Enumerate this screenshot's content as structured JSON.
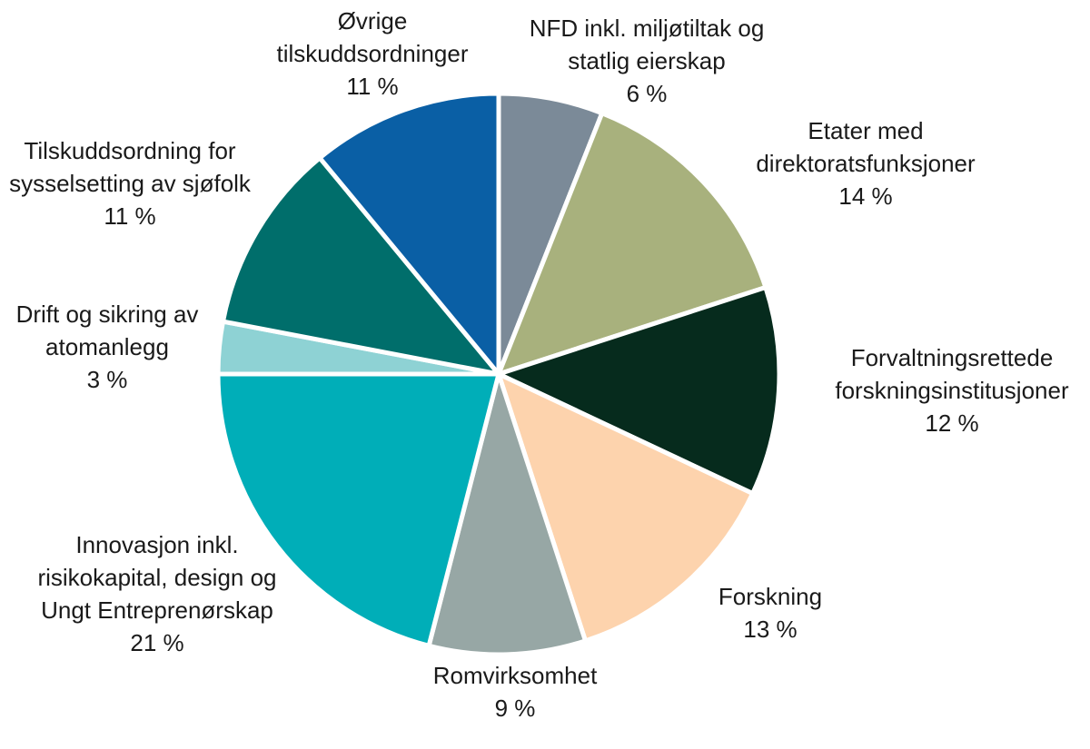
{
  "chart_data": {
    "type": "pie",
    "title": "",
    "start_angle_deg": 0,
    "direction": "clockwise",
    "value_unit": "%",
    "slices": [
      {
        "key": "nfd",
        "label_lines": [
          "NFD inkl. miljøtiltak og",
          "statlig eierskap"
        ],
        "value": 6,
        "value_label": "6 %",
        "color": "#7b8a98"
      },
      {
        "key": "etater",
        "label_lines": [
          "Etater med",
          "direktoratsfunksjoner"
        ],
        "value": 14,
        "value_label": "14 %",
        "color": "#a8b17d"
      },
      {
        "key": "forvaltning",
        "label_lines": [
          "Forvaltningsrettede",
          "forskningsinstitusjoner"
        ],
        "value": 12,
        "value_label": "12 %",
        "color": "#062b1d"
      },
      {
        "key": "forskning",
        "label_lines": [
          "Forskning"
        ],
        "value": 13,
        "value_label": "13 %",
        "color": "#fdd3ad"
      },
      {
        "key": "rom",
        "label_lines": [
          "Romvirksomhet"
        ],
        "value": 9,
        "value_label": "9 %",
        "color": "#97a7a5"
      },
      {
        "key": "innovasjon",
        "label_lines": [
          "Innovasjon inkl.",
          "risikokapital, design og",
          "Ungt Entreprenørskap"
        ],
        "value": 21,
        "value_label": "21 %",
        "color": "#00aeb8"
      },
      {
        "key": "atom",
        "label_lines": [
          "Drift og sikring av",
          "atomanlegg"
        ],
        "value": 3,
        "value_label": "3 %",
        "color": "#8ed2d4"
      },
      {
        "key": "sjofolk",
        "label_lines": [
          "Tilskuddsordning for",
          "sysselsetting av sjøfolk"
        ],
        "value": 11,
        "value_label": "11 %",
        "color": "#006e6b"
      },
      {
        "key": "ovrige",
        "label_lines": [
          "Øvrige",
          "tilskuddsordninger"
        ],
        "value": 11,
        "value_label": "11 %",
        "color": "#0a5fa5"
      }
    ]
  }
}
